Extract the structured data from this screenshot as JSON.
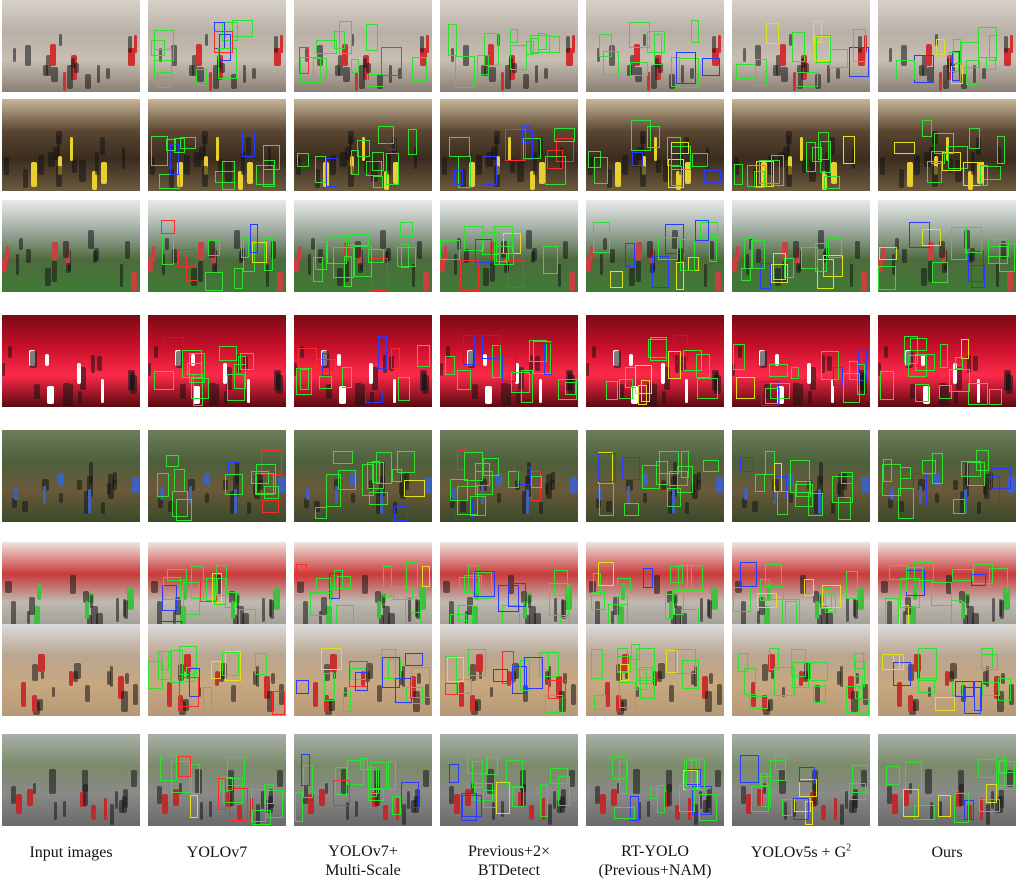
{
  "columns": [
    {
      "key": "input",
      "line1": "Input images",
      "line2": "",
      "sup": ""
    },
    {
      "key": "yolov7",
      "line1": "YOLOv7",
      "line2": "",
      "sup": ""
    },
    {
      "key": "yolov7ms",
      "line1": "YOLOv7+",
      "line2": "Multi-Scale",
      "sup": ""
    },
    {
      "key": "prev2bt",
      "line1": "Previous+2×",
      "line2": "BTDetect",
      "sup": ""
    },
    {
      "key": "rtyolo",
      "line1": "RT-YOLO",
      "line2": "(Previous+NAM)",
      "sup": ""
    },
    {
      "key": "yolov5g2",
      "line1": "YOLOv5s + G",
      "line2": "",
      "sup": "2"
    },
    {
      "key": "ours",
      "line1": "Ours",
      "line2": "",
      "sup": ""
    }
  ],
  "rows": [
    {
      "scene": "street-dance",
      "colors": [
        "#d9d2c8",
        "#b8b0a6",
        "#c8beb2",
        "#8a7f74"
      ],
      "accent": "#d23030"
    },
    {
      "scene": "dense-crowd",
      "colors": [
        "#c9b79a",
        "#5a4632",
        "#3a2c1e",
        "#6b5a3e"
      ],
      "accent": "#e8d030"
    },
    {
      "scene": "group-photo-lawn",
      "colors": [
        "#e8ece8",
        "#9aa79c",
        "#4d6b3c",
        "#3f7a35"
      ],
      "accent": "#c84040"
    },
    {
      "scene": "red-stage",
      "colors": [
        "#7a0a14",
        "#c8102a",
        "#ff2a4a",
        "#5a0a10"
      ],
      "accent": "#ffffff"
    },
    {
      "scene": "riverside-group",
      "colors": [
        "#6b7d5a",
        "#4e5f3c",
        "#6a5a3a",
        "#3a4a2a"
      ],
      "accent": "#4060c0"
    },
    {
      "scene": "festival-parade",
      "colors": [
        "#efe6e0",
        "#c83a3a",
        "#bfb9b0",
        "#9a968c"
      ],
      "accent": "#40c040"
    },
    {
      "scene": "colorful-gathering",
      "colors": [
        "#dcdcdc",
        "#b9a590",
        "#c8a880",
        "#b69a78"
      ],
      "accent": "#c83030"
    },
    {
      "scene": "plaza-performers",
      "colors": [
        "#a8b0a8",
        "#7a8a6a",
        "#8a8a88",
        "#6a6a6a"
      ],
      "accent": "#c02a2a"
    }
  ]
}
